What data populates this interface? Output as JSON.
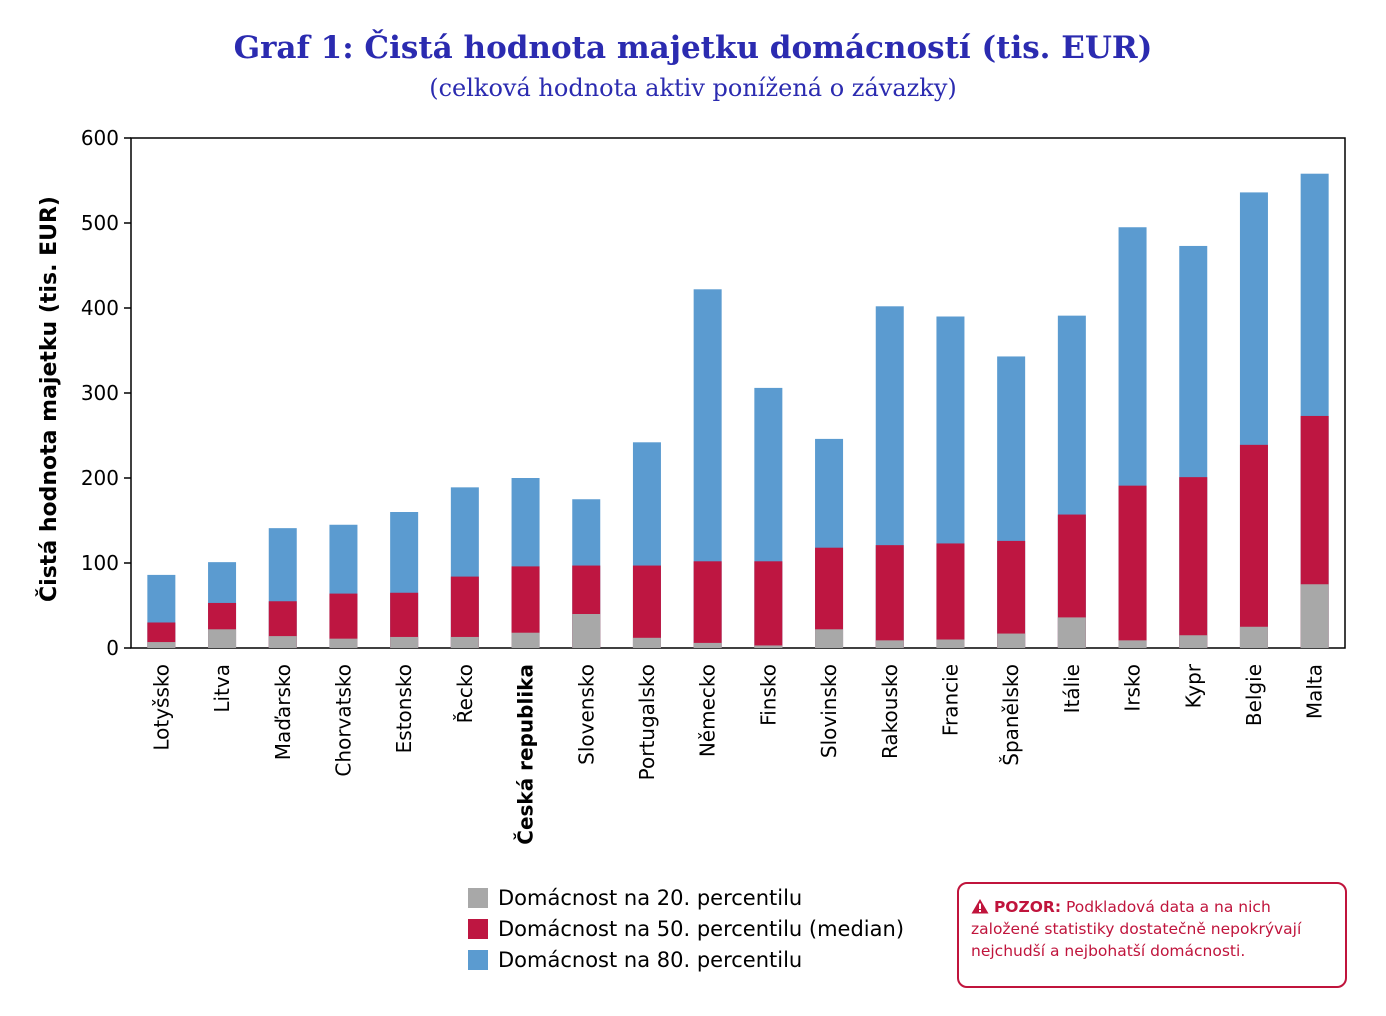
{
  "chart_data": {
    "type": "bar",
    "stacked": false,
    "overlapping": true,
    "title": "Graf 1: Čistá hodnota majetku domácností (tis. EUR)",
    "subtitle": "(celková hodnota aktiv ponížená o závazky)",
    "ylabel": "Čistá hodnota majetku (tis. EUR)",
    "xlabel": "",
    "ylim": [
      0,
      600
    ],
    "yticks": [
      "0",
      "100",
      "200",
      "300",
      "400",
      "500",
      "600"
    ],
    "categories": [
      "Lotyšsko",
      "Litva",
      "Maďarsko",
      "Chorvatsko",
      "Estonsko",
      "Řecko",
      "Česká republika",
      "Slovensko",
      "Portugalsko",
      "Německo",
      "Finsko",
      "Slovinsko",
      "Rakousko",
      "Francie",
      "Španělsko",
      "Itálie",
      "Irsko",
      "Kypr",
      "Belgie",
      "Malta"
    ],
    "highlighted_category": "Česká republika",
    "series": [
      {
        "name": "Domácnost na 80. percentilu",
        "color": "#5b9bd0",
        "values": [
          86,
          101,
          141,
          145,
          160,
          189,
          200,
          175,
          242,
          422,
          306,
          246,
          402,
          390,
          343,
          391,
          495,
          473,
          536,
          558
        ]
      },
      {
        "name": "Domácnost na 50. percentilu (median)",
        "color": "#be1641",
        "values": [
          30,
          53,
          55,
          64,
          65,
          84,
          96,
          97,
          97,
          102,
          102,
          118,
          121,
          123,
          126,
          157,
          191,
          201,
          239,
          273
        ]
      },
      {
        "name": "Domácnost na 20. percentilu",
        "color": "#a8a8a8",
        "values": [
          7,
          22,
          14,
          11,
          13,
          13,
          18,
          40,
          12,
          6,
          3,
          22,
          9,
          10,
          17,
          36,
          9,
          15,
          25,
          75
        ]
      }
    ],
    "legend_placement": "bottom-center",
    "grid": false
  },
  "legend": {
    "items": [
      {
        "label": "Domácnost na 20. percentilu",
        "color": "#a8a8a8"
      },
      {
        "label": "Domácnost na 50. percentilu (median)",
        "color": "#be1641"
      },
      {
        "label": "Domácnost na 80. percentilu",
        "color": "#5b9bd0"
      }
    ]
  },
  "warning": {
    "icon": "warning-triangle-icon",
    "label": "POZOR:",
    "text": " Podkladová data a na nich založené statistiky dostatečně nepokrývají nejchudší a nejbohatší domácnosti."
  },
  "colors": {
    "title": "#2b2bb0",
    "warning": "#c0143c"
  }
}
